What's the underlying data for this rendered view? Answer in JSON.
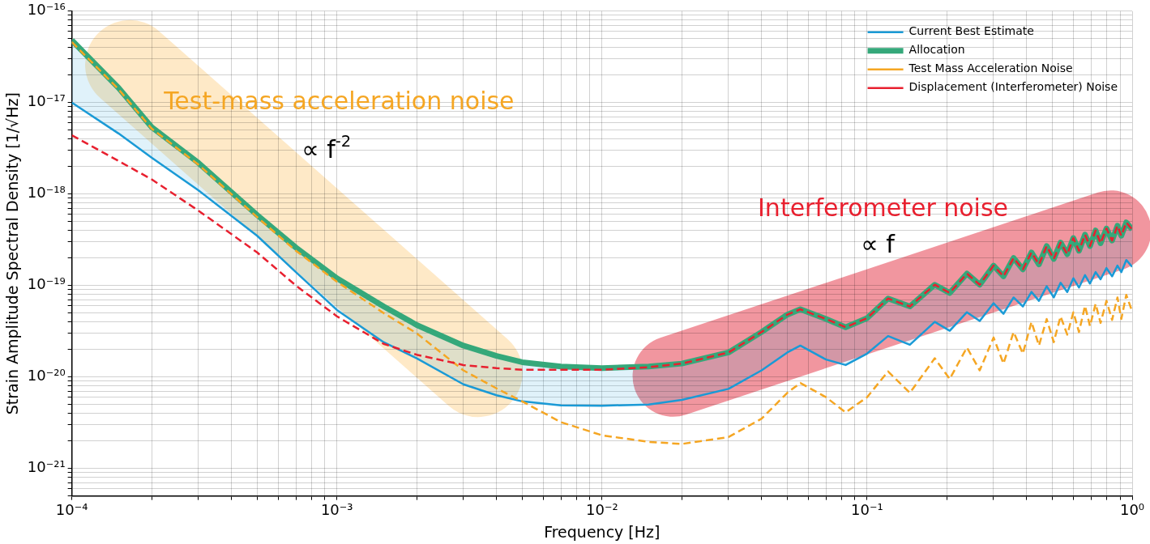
{
  "chart_data": {
    "type": "line",
    "xlabel": "Frequency [Hz]",
    "ylabel": "Strain Amplitude Spectral Density [1/√Hz]",
    "log": "xy",
    "grid": true,
    "legend": "top right",
    "marker": "none",
    "xlim": [
      0.0001,
      1
    ],
    "ylim": [
      5e-22,
      1e-16
    ],
    "xticks": [
      {
        "value": 0.0001,
        "label": "10⁻⁴"
      },
      {
        "value": 0.0002,
        "label": null
      },
      {
        "value": 0.0003,
        "label": null
      },
      {
        "value": 0.0004,
        "label": null
      },
      {
        "value": 0.0005,
        "label": null
      },
      {
        "value": 0.0006,
        "label": null
      },
      {
        "value": 0.0007,
        "label": null
      },
      {
        "value": 0.0008,
        "label": null
      },
      {
        "value": 0.0009,
        "label": null
      },
      {
        "value": 0.001,
        "label": "10⁻³"
      },
      {
        "value": 0.002,
        "label": null
      },
      {
        "value": 0.003,
        "label": null
      },
      {
        "value": 0.004,
        "label": null
      },
      {
        "value": 0.005,
        "label": null
      },
      {
        "value": 0.006,
        "label": null
      },
      {
        "value": 0.007,
        "label": null
      },
      {
        "value": 0.008,
        "label": null
      },
      {
        "value": 0.009,
        "label": null
      },
      {
        "value": 0.01,
        "label": "10⁻²"
      },
      {
        "value": 0.02,
        "label": null
      },
      {
        "value": 0.03,
        "label": null
      },
      {
        "value": 0.04,
        "label": null
      },
      {
        "value": 0.05,
        "label": null
      },
      {
        "value": 0.06,
        "label": null
      },
      {
        "value": 0.07,
        "label": null
      },
      {
        "value": 0.08,
        "label": null
      },
      {
        "value": 0.09,
        "label": null
      },
      {
        "value": 0.1,
        "label": "10⁻¹"
      },
      {
        "value": 0.2,
        "label": null
      },
      {
        "value": 0.3,
        "label": null
      },
      {
        "value": 0.4,
        "label": null
      },
      {
        "value": 0.5,
        "label": null
      },
      {
        "value": 0.6,
        "label": null
      },
      {
        "value": 0.7,
        "label": null
      },
      {
        "value": 0.8,
        "label": null
      },
      {
        "value": 0.9,
        "label": null
      },
      {
        "value": 1,
        "label": "10⁰"
      }
    ],
    "yticks": [
      {
        "value": 5e-22,
        "label": null
      },
      {
        "value": 6e-22,
        "label": null
      },
      {
        "value": 7e-22,
        "label": null
      },
      {
        "value": 8e-22,
        "label": null
      },
      {
        "value": 9e-22,
        "label": null
      },
      {
        "value": 1e-21,
        "label": "10⁻²¹"
      },
      {
        "value": 2e-21,
        "label": null
      },
      {
        "value": 3e-21,
        "label": null
      },
      {
        "value": 4e-21,
        "label": null
      },
      {
        "value": 5e-21,
        "label": null
      },
      {
        "value": 6e-21,
        "label": null
      },
      {
        "value": 7e-21,
        "label": null
      },
      {
        "value": 8e-21,
        "label": null
      },
      {
        "value": 9e-21,
        "label": null
      },
      {
        "value": 1e-20,
        "label": "10⁻²⁰"
      },
      {
        "value": 2e-20,
        "label": null
      },
      {
        "value": 3e-20,
        "label": null
      },
      {
        "value": 4e-20,
        "label": null
      },
      {
        "value": 5e-20,
        "label": null
      },
      {
        "value": 6e-20,
        "label": null
      },
      {
        "value": 7e-20,
        "label": null
      },
      {
        "value": 8e-20,
        "label": null
      },
      {
        "value": 9e-20,
        "label": null
      },
      {
        "value": 1e-19,
        "label": "10⁻¹⁹"
      },
      {
        "value": 2e-19,
        "label": null
      },
      {
        "value": 3e-19,
        "label": null
      },
      {
        "value": 4e-19,
        "label": null
      },
      {
        "value": 5e-19,
        "label": null
      },
      {
        "value": 6e-19,
        "label": null
      },
      {
        "value": 7e-19,
        "label": null
      },
      {
        "value": 8e-19,
        "label": null
      },
      {
        "value": 9e-19,
        "label": null
      },
      {
        "value": 1e-18,
        "label": "10⁻¹⁸"
      },
      {
        "value": 2e-18,
        "label": null
      },
      {
        "value": 3e-18,
        "label": null
      },
      {
        "value": 4e-18,
        "label": null
      },
      {
        "value": 5e-18,
        "label": null
      },
      {
        "value": 6e-18,
        "label": null
      },
      {
        "value": 7e-18,
        "label": null
      },
      {
        "value": 8e-18,
        "label": null
      },
      {
        "value": 9e-18,
        "label": null
      },
      {
        "value": 1e-17,
        "label": "10⁻¹⁷"
      },
      {
        "value": 2e-17,
        "label": null
      },
      {
        "value": 3e-17,
        "label": null
      },
      {
        "value": 4e-17,
        "label": null
      },
      {
        "value": 5e-17,
        "label": null
      },
      {
        "value": 6e-17,
        "label": null
      },
      {
        "value": 7e-17,
        "label": null
      },
      {
        "value": 8e-17,
        "label": null
      },
      {
        "value": 9e-17,
        "label": null
      },
      {
        "value": 1e-16,
        "label": "10⁻¹⁶"
      }
    ],
    "x": [
      0.0001,
      0.00015,
      0.0002,
      0.0003,
      0.0005,
      0.0007,
      0.001,
      0.0015,
      0.002,
      0.003,
      0.004,
      0.005,
      0.007,
      0.01,
      0.015,
      0.02,
      0.03,
      0.04,
      0.05,
      0.056,
      0.07,
      0.083,
      0.1,
      0.12,
      0.145,
      0.18,
      0.205,
      0.238,
      0.266,
      0.3,
      0.327,
      0.357,
      0.387,
      0.417,
      0.445,
      0.476,
      0.506,
      0.537,
      0.569,
      0.6,
      0.63,
      0.664,
      0.693,
      0.728,
      0.76,
      0.8,
      0.84,
      0.88,
      0.91,
      0.95,
      1
    ],
    "series": [
      {
        "name": "Current Best Estimate",
        "color": "#1a9ad6",
        "line_style": "solid",
        "values": [
          1e-17,
          4.6e-18,
          2.5e-18,
          1.1e-18,
          3.5e-19,
          1.4e-19,
          5.4e-20,
          2.4e-20,
          1.6e-20,
          8.3e-21,
          6.3e-21,
          5.4e-21,
          4.9e-21,
          4.85e-21,
          5e-21,
          5.6e-21,
          7.4e-21,
          1.18e-20,
          1.85e-20,
          2.2e-20,
          1.55e-20,
          1.35e-20,
          1.8e-20,
          2.8e-20,
          2.25e-20,
          4e-20,
          3.2e-20,
          5.1e-20,
          4.1e-20,
          6.4e-20,
          4.9e-20,
          7.4e-20,
          5.9e-20,
          8.5e-20,
          6.8e-20,
          9.8e-20,
          7.4e-20,
          1.07e-19,
          8.5e-20,
          1.2e-19,
          9.5e-20,
          1.3e-19,
          1.05e-19,
          1.4e-19,
          1.17e-19,
          1.55e-19,
          1.26e-19,
          1.65e-19,
          1.4e-19,
          1.9e-19,
          1.6e-19
        ],
        "lower": [
          1e-17,
          4.6e-18,
          2.5e-18,
          1.1e-18,
          3.5e-19,
          1.4e-19,
          5.4e-20,
          2.4e-20,
          1.6e-20,
          8.3e-21,
          6.3e-21,
          5.4e-21,
          4.9e-21,
          4.85e-21,
          5e-21,
          5.6e-21,
          7.4e-21,
          1.18e-20,
          1.85e-20,
          2.2e-20,
          1.55e-20,
          1.35e-20,
          1.8e-20,
          2.8e-20,
          2.25e-20,
          4e-20,
          3.2e-20,
          5.1e-20,
          4.1e-20,
          6.4e-20,
          4.9e-20,
          7.4e-20,
          5.9e-20,
          8.5e-20,
          6.8e-20,
          9.8e-20,
          7.4e-20,
          1.07e-19,
          8.5e-20,
          1.2e-19,
          9.5e-20,
          1.3e-19,
          1.05e-19,
          1.4e-19,
          1.17e-19,
          1.55e-19,
          1.26e-19,
          1.65e-19,
          1.4e-19,
          1.9e-19,
          1.6e-19
        ],
        "upper": [
          4.8e-17,
          1.45e-17,
          5.4e-18,
          2.2e-18,
          5.9e-19,
          2.6e-19,
          1.2e-19,
          5.9e-20,
          3.7e-20,
          2.2e-20,
          1.7e-20,
          1.45e-20,
          1.3e-20,
          1.25e-20,
          1.3e-20,
          1.4e-20,
          1.85e-20,
          3.1e-20,
          4.8e-20,
          5.5e-20,
          4.3e-20,
          3.5e-20,
          4.4e-20,
          7.2e-20,
          5.9e-20,
          1.02e-19,
          8.3e-20,
          1.35e-19,
          1.02e-19,
          1.65e-19,
          1.26e-19,
          2e-19,
          1.5e-19,
          2.3e-19,
          1.7e-19,
          2.7e-19,
          1.95e-19,
          2.95e-19,
          2.2e-19,
          3.3e-19,
          2.4e-19,
          3.6e-19,
          2.7e-19,
          4e-19,
          2.9e-19,
          4.2e-19,
          3.1e-19,
          4.5e-19,
          3.5e-19,
          4.9e-19,
          4.1e-19
        ]
      },
      {
        "name": "Allocation",
        "color": "#35a87a",
        "line_style": "solid",
        "values": [
          4.8e-17,
          1.45e-17,
          5.4e-18,
          2.2e-18,
          5.9e-19,
          2.6e-19,
          1.2e-19,
          5.9e-20,
          3.7e-20,
          2.2e-20,
          1.7e-20,
          1.45e-20,
          1.3e-20,
          1.25e-20,
          1.3e-20,
          1.4e-20,
          1.85e-20,
          3.1e-20,
          4.8e-20,
          5.5e-20,
          4.3e-20,
          3.5e-20,
          4.4e-20,
          7.2e-20,
          5.9e-20,
          1.02e-19,
          8.3e-20,
          1.35e-19,
          1.02e-19,
          1.65e-19,
          1.26e-19,
          2e-19,
          1.5e-19,
          2.3e-19,
          1.7e-19,
          2.7e-19,
          1.95e-19,
          2.95e-19,
          2.2e-19,
          3.3e-19,
          2.4e-19,
          3.6e-19,
          2.7e-19,
          4e-19,
          2.9e-19,
          4.2e-19,
          3.1e-19,
          4.5e-19,
          3.5e-19,
          4.9e-19,
          4.1e-19
        ]
      },
      {
        "name": "Test Mass Acceleration Noise",
        "color": "#f5a623",
        "line_style": "dashed",
        "values": [
          4.6e-17,
          1.4e-17,
          5.2e-18,
          2.1e-18,
          5.6e-19,
          2.4e-19,
          1.1e-19,
          5e-20,
          3e-20,
          1.18e-20,
          7.5e-21,
          5.4e-21,
          3.2e-21,
          2.3e-21,
          1.95e-21,
          1.85e-21,
          2.2e-21,
          3.5e-21,
          6.7e-21,
          8.6e-21,
          6e-21,
          4.1e-21,
          6e-21,
          1.15e-20,
          6.7e-21,
          1.6e-20,
          9.5e-21,
          2.1e-20,
          1.18e-20,
          2.7e-20,
          1.4e-20,
          3.1e-20,
          1.8e-20,
          4e-20,
          2.2e-20,
          4.3e-20,
          2.4e-20,
          4.6e-20,
          2.9e-20,
          5.1e-20,
          3.1e-20,
          6e-20,
          3.6e-20,
          6.3e-20,
          3.9e-20,
          6.8e-20,
          4.2e-20,
          7.4e-20,
          4.3e-20,
          7.9e-20,
          5.2e-20
        ]
      },
      {
        "name": "Displacement (Interferometer) Noise",
        "color": "#e8202f",
        "line_style": "dashed",
        "values": [
          4.4e-18,
          2.3e-18,
          1.45e-18,
          6.6e-19,
          2.3e-19,
          1e-19,
          4.6e-20,
          2.3e-20,
          1.75e-20,
          1.35e-20,
          1.25e-20,
          1.2e-20,
          1.2e-20,
          1.2e-20,
          1.28e-20,
          1.4e-20,
          1.85e-20,
          3.1e-20,
          4.8e-20,
          5.5e-20,
          4.3e-20,
          3.5e-20,
          4.4e-20,
          7.2e-20,
          5.9e-20,
          1.02e-19,
          8.3e-20,
          1.35e-19,
          1.02e-19,
          1.65e-19,
          1.26e-19,
          2e-19,
          1.5e-19,
          2.3e-19,
          1.7e-19,
          2.7e-19,
          1.95e-19,
          2.95e-19,
          2.2e-19,
          3.3e-19,
          2.4e-19,
          3.6e-19,
          2.7e-19,
          4e-19,
          2.9e-19,
          4.2e-19,
          3.1e-19,
          4.5e-19,
          3.5e-19,
          4.9e-19,
          4.1e-19
        ]
      }
    ],
    "annotations": [
      "Test-mass acceleration noise",
      "∝ f$^{-2}$",
      "Interferometer noise",
      "∝ f"
    ]
  }
}
